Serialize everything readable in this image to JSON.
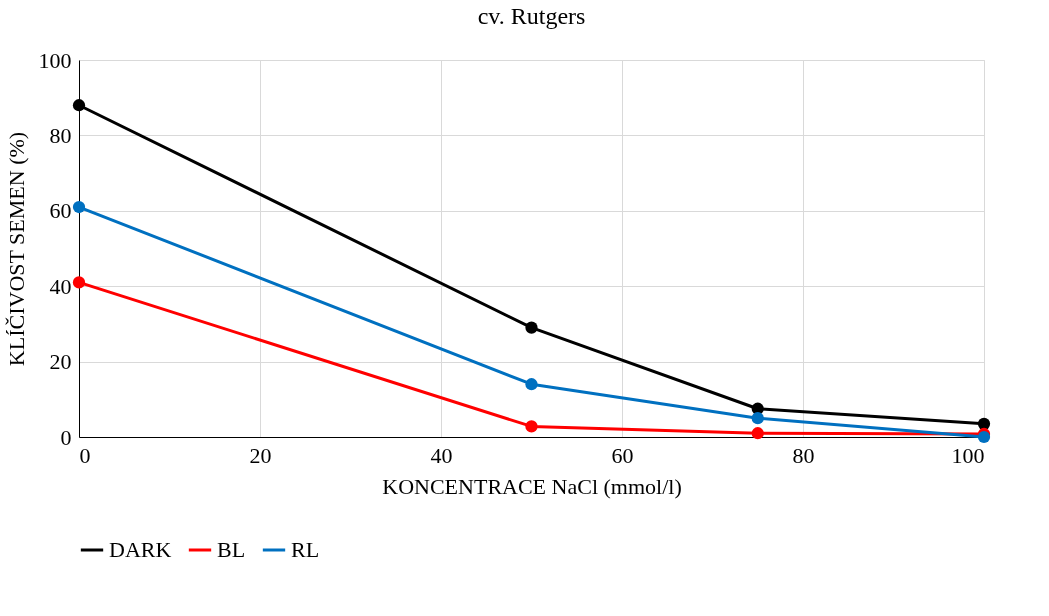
{
  "chart_data": {
    "type": "line",
    "title": "cv. Rutgers",
    "xlabel": "KONCENTRACE NaCl (mmol/l)",
    "ylabel": "KLÍČIVOST SEMEN (%)",
    "x": [
      0,
      50,
      75,
      100
    ],
    "series": [
      {
        "name": "DARK",
        "color": "#000000",
        "values": [
          88,
          29,
          7.5,
          3.5
        ]
      },
      {
        "name": "BL",
        "color": "#ff0000",
        "values": [
          41,
          2.8,
          1,
          0.8
        ]
      },
      {
        "name": "RL",
        "color": "#0070c0",
        "values": [
          61,
          14,
          5,
          0
        ]
      }
    ],
    "xlim": [
      0,
      100
    ],
    "xticks": [
      0,
      20,
      40,
      60,
      80,
      100
    ],
    "ylim": [
      0,
      100
    ],
    "yticks": [
      0,
      20,
      40,
      60,
      80,
      100
    ],
    "grid": true,
    "legend": "bottom",
    "marker": "circle",
    "line_style": "solid"
  }
}
